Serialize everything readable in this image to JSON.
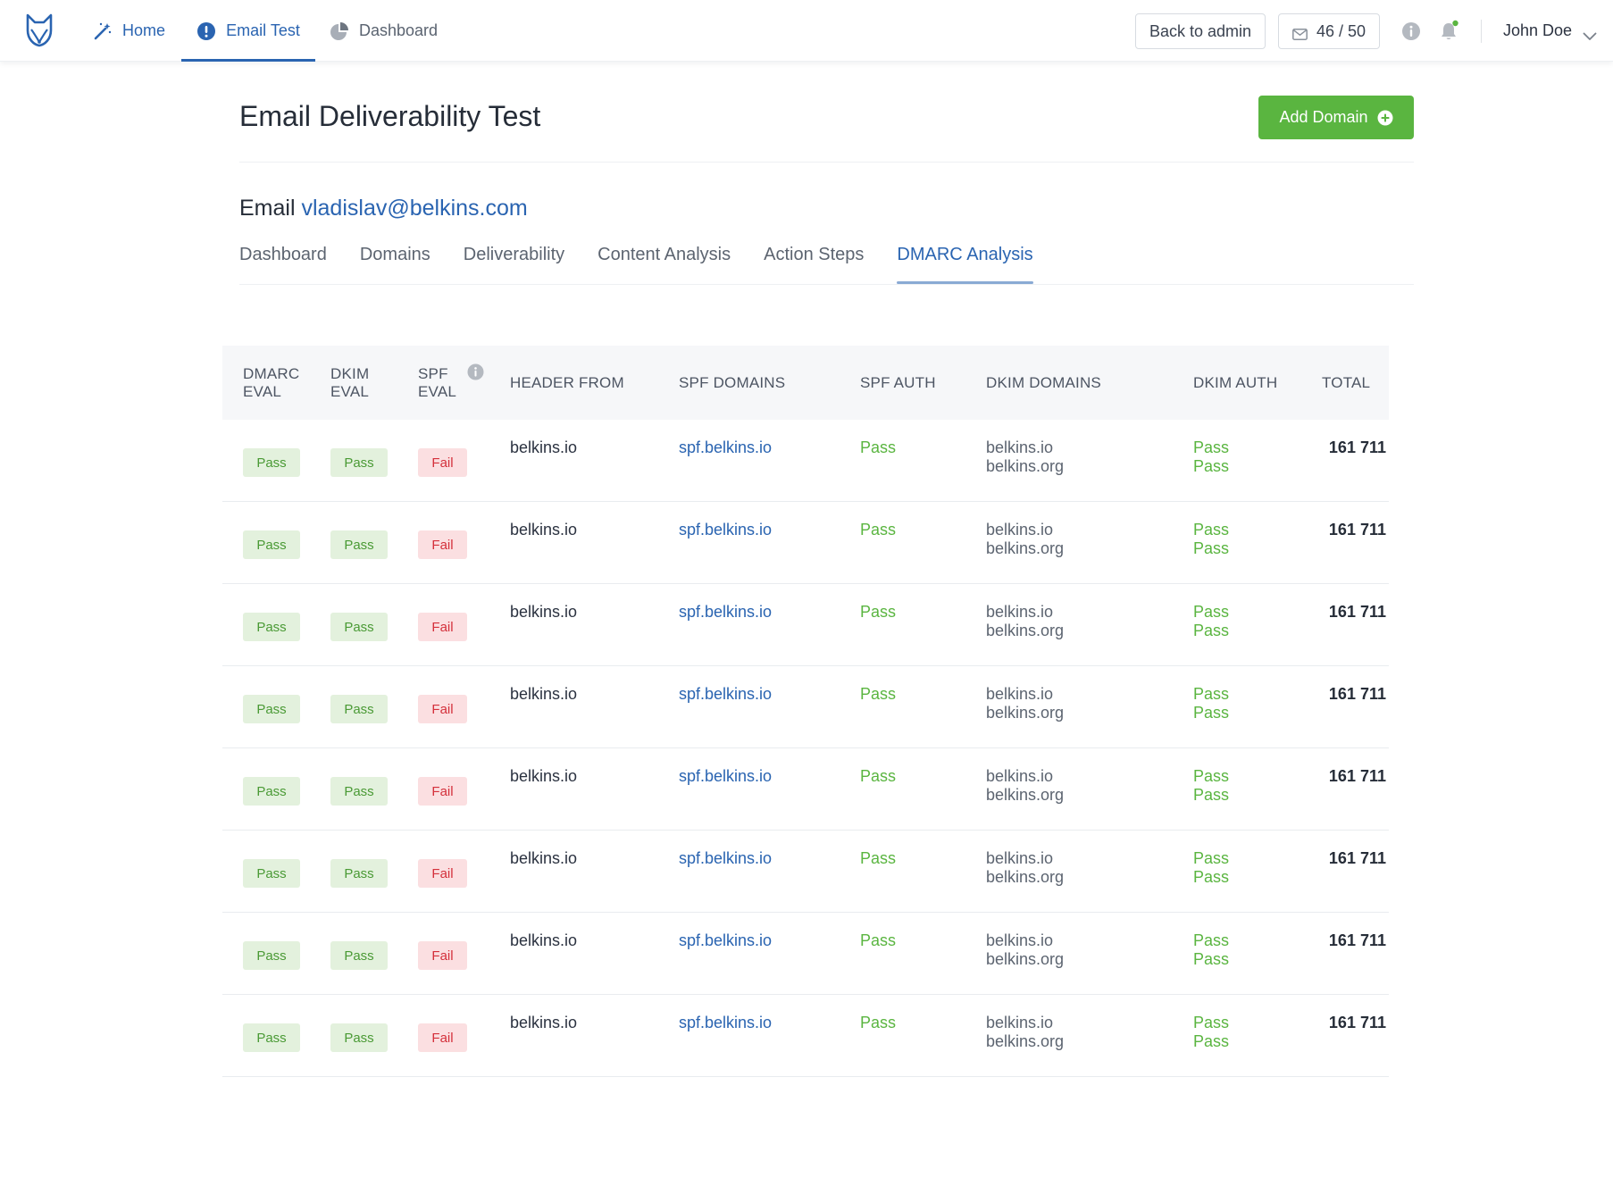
{
  "nav": {
    "items": [
      {
        "label": "Home",
        "icon": "magic-wand-icon"
      },
      {
        "label": "Email Test",
        "icon": "alert-circle-icon"
      },
      {
        "label": "Dashboard",
        "icon": "pie-chart-icon"
      }
    ],
    "active_index": 1,
    "back_label": "Back to admin",
    "credits": "46 / 50",
    "user_name": "John Doe"
  },
  "page": {
    "title": "Email Deliverability Test",
    "add_button": "Add Domain",
    "email_prefix": "Email",
    "email_address": "vladislav@belkins.com"
  },
  "subtabs": [
    "Dashboard",
    "Domains",
    "Deliverability",
    "Content Analysis",
    "Action Steps",
    "DMARC Analysis"
  ],
  "active_subtab": 5,
  "table": {
    "headers": {
      "dmarc_eval": [
        "DMARC",
        "EVAL"
      ],
      "dkim_eval": [
        "DKIM",
        "EVAL"
      ],
      "spf_eval": [
        "SPF",
        "EVAL"
      ],
      "header_from": "HEADER FROM",
      "spf_domains": "SPF DOMAINS",
      "spf_auth": "SPF AUTH",
      "dkim_domains": "DKIM DOMAINS",
      "dkim_auth": "DKIM AUTH",
      "total": "TOTAL"
    },
    "rows": [
      {
        "dmarc": "Pass",
        "dkim": "Pass",
        "spf": "Fail",
        "header_from": "belkins.io",
        "spf_domain": "spf.belkins.io",
        "spf_auth": "Pass",
        "dkim_domains": [
          "belkins.io",
          "belkins.org"
        ],
        "dkim_auth": [
          "Pass",
          "Pass"
        ],
        "total": "161 711"
      },
      {
        "dmarc": "Pass",
        "dkim": "Pass",
        "spf": "Fail",
        "header_from": "belkins.io",
        "spf_domain": "spf.belkins.io",
        "spf_auth": "Pass",
        "dkim_domains": [
          "belkins.io",
          "belkins.org"
        ],
        "dkim_auth": [
          "Pass",
          "Pass"
        ],
        "total": "161 711"
      },
      {
        "dmarc": "Pass",
        "dkim": "Pass",
        "spf": "Fail",
        "header_from": "belkins.io",
        "spf_domain": "spf.belkins.io",
        "spf_auth": "Pass",
        "dkim_domains": [
          "belkins.io",
          "belkins.org"
        ],
        "dkim_auth": [
          "Pass",
          "Pass"
        ],
        "total": "161 711"
      },
      {
        "dmarc": "Pass",
        "dkim": "Pass",
        "spf": "Fail",
        "header_from": "belkins.io",
        "spf_domain": "spf.belkins.io",
        "spf_auth": "Pass",
        "dkim_domains": [
          "belkins.io",
          "belkins.org"
        ],
        "dkim_auth": [
          "Pass",
          "Pass"
        ],
        "total": "161 711"
      },
      {
        "dmarc": "Pass",
        "dkim": "Pass",
        "spf": "Fail",
        "header_from": "belkins.io",
        "spf_domain": "spf.belkins.io",
        "spf_auth": "Pass",
        "dkim_domains": [
          "belkins.io",
          "belkins.org"
        ],
        "dkim_auth": [
          "Pass",
          "Pass"
        ],
        "total": "161 711"
      },
      {
        "dmarc": "Pass",
        "dkim": "Pass",
        "spf": "Fail",
        "header_from": "belkins.io",
        "spf_domain": "spf.belkins.io",
        "spf_auth": "Pass",
        "dkim_domains": [
          "belkins.io",
          "belkins.org"
        ],
        "dkim_auth": [
          "Pass",
          "Pass"
        ],
        "total": "161 711"
      },
      {
        "dmarc": "Pass",
        "dkim": "Pass",
        "spf": "Fail",
        "header_from": "belkins.io",
        "spf_domain": "spf.belkins.io",
        "spf_auth": "Pass",
        "dkim_domains": [
          "belkins.io",
          "belkins.org"
        ],
        "dkim_auth": [
          "Pass",
          "Pass"
        ],
        "total": "161 711"
      },
      {
        "dmarc": "Pass",
        "dkim": "Pass",
        "spf": "Fail",
        "header_from": "belkins.io",
        "spf_domain": "spf.belkins.io",
        "spf_auth": "Pass",
        "dkim_domains": [
          "belkins.io",
          "belkins.org"
        ],
        "dkim_auth": [
          "Pass",
          "Pass"
        ],
        "total": "161 711"
      }
    ]
  },
  "colors": {
    "accent": "#2a64b1",
    "success": "#5ab540",
    "danger": "#d4303b"
  }
}
